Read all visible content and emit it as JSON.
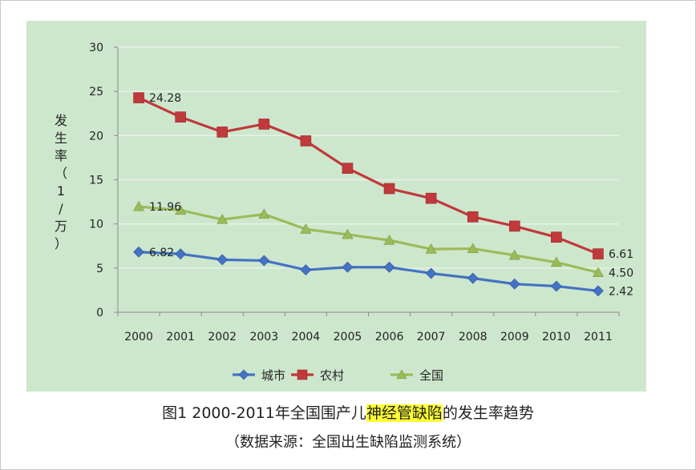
{
  "chart_data": {
    "type": "line",
    "x": [
      "2000",
      "2001",
      "2002",
      "2003",
      "2004",
      "2005",
      "2006",
      "2007",
      "2008",
      "2009",
      "2010",
      "2011"
    ],
    "ylim": [
      0,
      30
    ],
    "yticks": [
      "0",
      "5",
      "10",
      "15",
      "20",
      "25",
      "30"
    ],
    "ylabel_chars": [
      "发",
      "生",
      "率",
      "（",
      "1",
      "/",
      "万",
      "）"
    ],
    "grid": true,
    "legend_position": "bottom",
    "series": [
      {
        "name": "城市",
        "color": "#4472c4",
        "marker": "diamond",
        "values": [
          6.82,
          6.6,
          5.95,
          5.85,
          4.8,
          5.1,
          5.1,
          4.4,
          3.85,
          3.2,
          2.95,
          2.42
        ]
      },
      {
        "name": "农村",
        "color": "#c0393b",
        "marker": "square",
        "values": [
          24.28,
          22.1,
          20.4,
          21.3,
          19.4,
          16.3,
          14.0,
          12.9,
          10.8,
          9.75,
          8.5,
          6.61
        ]
      },
      {
        "name": "全国",
        "color": "#9bbb59",
        "marker": "triangle",
        "values": [
          11.96,
          11.55,
          10.5,
          11.1,
          9.4,
          8.8,
          8.15,
          7.15,
          7.2,
          6.45,
          5.65,
          4.5
        ]
      }
    ],
    "data_labels": [
      {
        "series": 1,
        "index": 0,
        "text": "24.28",
        "side": "right"
      },
      {
        "series": 2,
        "index": 0,
        "text": "11.96",
        "side": "right"
      },
      {
        "series": 0,
        "index": 0,
        "text": "6.82",
        "side": "right"
      },
      {
        "series": 1,
        "index": 11,
        "text": "6.61",
        "side": "right"
      },
      {
        "series": 2,
        "index": 11,
        "text": "4.50",
        "side": "right"
      },
      {
        "series": 0,
        "index": 11,
        "text": "2.42",
        "side": "right"
      }
    ]
  },
  "caption": {
    "prefix": "图1  2000-2011年全国围产儿",
    "highlight": "神经管缺陷",
    "suffix": "的发生率趋势",
    "source": "（数据来源：全国出生缺陷监测系统）"
  }
}
